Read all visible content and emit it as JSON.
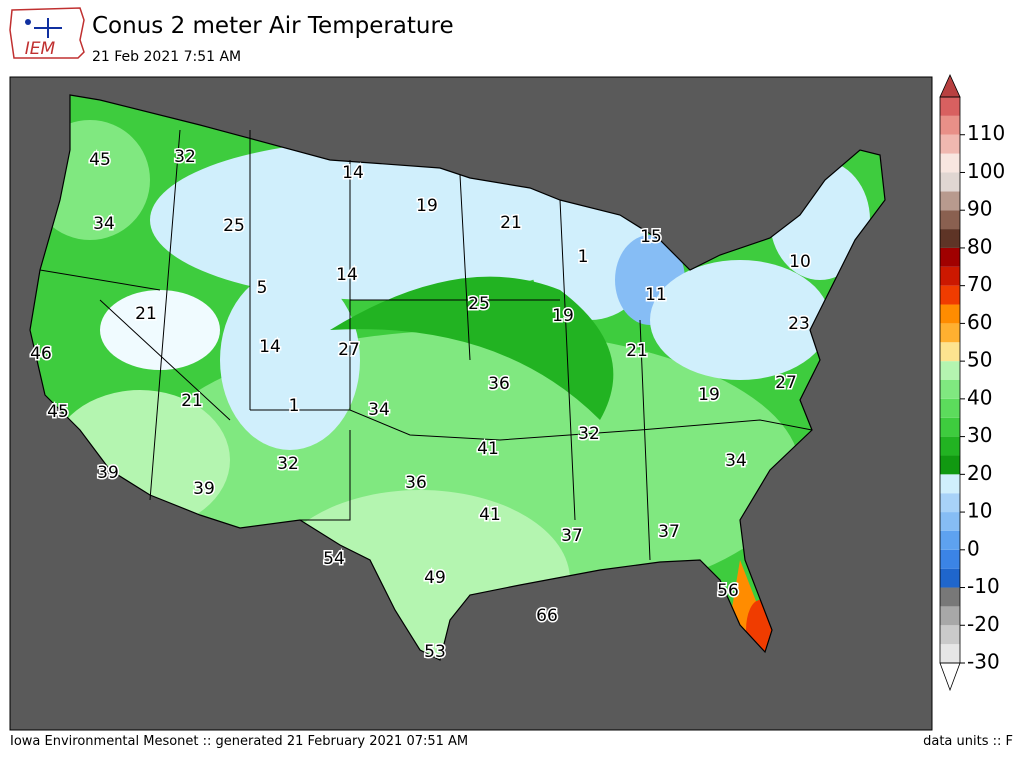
{
  "header": {
    "logo_text": "IEM",
    "title": "Conus 2 meter Air Temperature",
    "subtitle": "21 Feb 2021 7:51 AM"
  },
  "footer": {
    "left": "Iowa Environmental Mesonet :: generated 21 February 2021 07:51 AM",
    "right": "data units :: F"
  },
  "colorbar": {
    "lim": [
      -30,
      120
    ],
    "ticks": [
      -30,
      -20,
      -10,
      0,
      10,
      20,
      30,
      40,
      50,
      60,
      70,
      80,
      90,
      100,
      110
    ],
    "colors": [
      "#e6e6e6",
      "#cacaca",
      "#a8a8a8",
      "#787878",
      "#1f66cc",
      "#3b84e6",
      "#5ea2f0",
      "#86bdf5",
      "#a8d2f8",
      "#d0effc",
      "#119911",
      "#22b322",
      "#3ecc3e",
      "#5cdc5c",
      "#80e880",
      "#b4f5b0",
      "#fde38f",
      "#ffb030",
      "#ff8c00",
      "#f03c00",
      "#cc1800",
      "#a00000",
      "#5e3426",
      "#8a6050",
      "#b89a8e",
      "#e0d6d2",
      "#f8e6e0",
      "#f0b8b0",
      "#e89088",
      "#d86060"
    ],
    "over_color": "#b84040",
    "under_color": "#ffffff"
  },
  "map": {
    "contour_labels": [
      45,
      32,
      14,
      19,
      21,
      15,
      34,
      25,
      1,
      10,
      14,
      5,
      11,
      21,
      25,
      19,
      23,
      46,
      14,
      27,
      21,
      36,
      27,
      19,
      45,
      21,
      1,
      34,
      32,
      41,
      34,
      39,
      32,
      39,
      36,
      41,
      37,
      37,
      54,
      49,
      56,
      66,
      53
    ]
  }
}
